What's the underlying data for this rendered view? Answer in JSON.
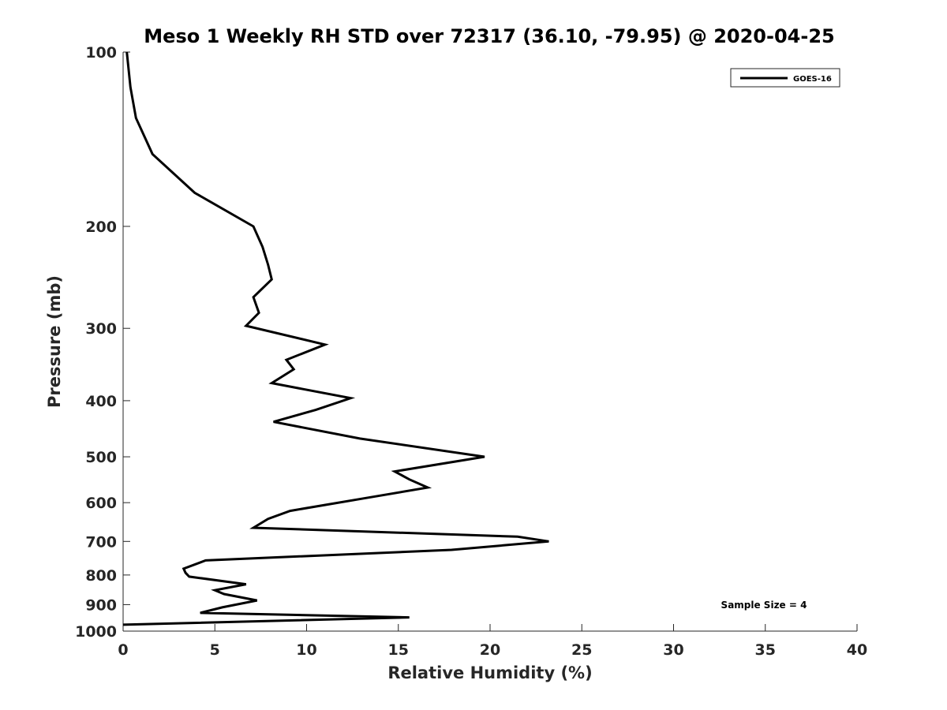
{
  "chart_data": {
    "type": "line",
    "title": "Meso 1 Weekly RH STD over 72317 (36.10, -79.95) @ 2020-04-25",
    "xlabel": "Relative Humidity (%)",
    "ylabel": "Pressure (mb)",
    "xlim": [
      0,
      40
    ],
    "ylim": [
      100,
      1000
    ],
    "y_scale": "log",
    "y_reversed": true,
    "x_ticks": [
      0,
      5,
      10,
      15,
      20,
      25,
      30,
      35,
      40
    ],
    "y_ticks": [
      100,
      200,
      300,
      400,
      500,
      600,
      700,
      800,
      900,
      1000
    ],
    "grid": false,
    "legend_position": "top-right",
    "annotation": "Sample Size = 4",
    "series": [
      {
        "name": "GOES-16",
        "color": "#000000",
        "points": [
          [
            0.2,
            100
          ],
          [
            0.4,
            115
          ],
          [
            0.7,
            130
          ],
          [
            1.6,
            150
          ],
          [
            3.9,
            175
          ],
          [
            7.1,
            200
          ],
          [
            7.6,
            217
          ],
          [
            7.9,
            233
          ],
          [
            8.1,
            247
          ],
          [
            7.1,
            265
          ],
          [
            7.4,
            282
          ],
          [
            6.7,
            297
          ],
          [
            11.0,
            320
          ],
          [
            8.9,
            340
          ],
          [
            9.3,
            353
          ],
          [
            8.1,
            373
          ],
          [
            12.4,
            396
          ],
          [
            10.5,
            415
          ],
          [
            8.2,
            435
          ],
          [
            12.9,
            465
          ],
          [
            19.7,
            500
          ],
          [
            14.8,
            530
          ],
          [
            15.6,
            547
          ],
          [
            16.6,
            565
          ],
          [
            13.1,
            590
          ],
          [
            9.1,
            620
          ],
          [
            7.9,
            640
          ],
          [
            7.1,
            663
          ],
          [
            21.5,
            687
          ],
          [
            23.2,
            700
          ],
          [
            17.9,
            724
          ],
          [
            4.5,
            755
          ],
          [
            3.3,
            780
          ],
          [
            3.4,
            793
          ],
          [
            3.6,
            805
          ],
          [
            6.7,
            830
          ],
          [
            5.0,
            850
          ],
          [
            5.5,
            863
          ],
          [
            7.3,
            885
          ],
          [
            5.4,
            910
          ],
          [
            4.2,
            930
          ],
          [
            15.6,
            947
          ],
          [
            0.0,
            975
          ]
        ]
      }
    ]
  }
}
